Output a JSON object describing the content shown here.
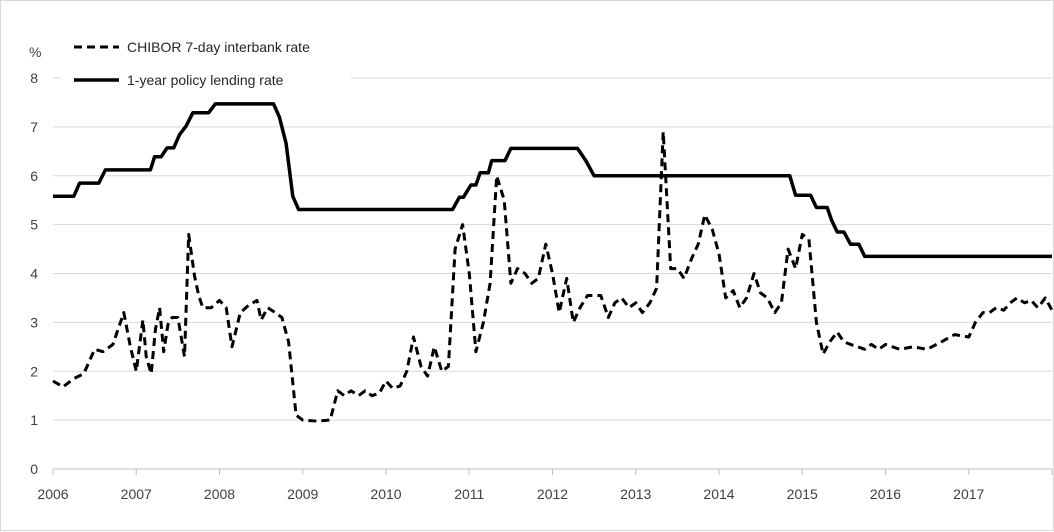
{
  "chart_data": {
    "type": "line",
    "title": "",
    "xlabel": "",
    "ylabel": "%",
    "ylim": [
      0,
      8
    ],
    "xlim": [
      2006,
      2018
    ],
    "grid": "horizontal",
    "legend": "top-left",
    "y_ticks": [
      "0",
      "1",
      "2",
      "3",
      "4",
      "5",
      "6",
      "7",
      "8"
    ],
    "x_ticks": [
      "2006",
      "2007",
      "2008",
      "2009",
      "2010",
      "2011",
      "2012",
      "2013",
      "2014",
      "2015",
      "2016",
      "2017"
    ],
    "series": [
      {
        "name": "CHIBOR 7-day interbank rate",
        "style": "dashed",
        "color": "#000000",
        "x": [
          2006.0,
          2006.12,
          2006.25,
          2006.37,
          2006.5,
          2006.6,
          2006.72,
          2006.85,
          2006.93,
          2007.0,
          2007.08,
          2007.12,
          2007.18,
          2007.23,
          2007.28,
          2007.33,
          2007.38,
          2007.43,
          2007.5,
          2007.58,
          2007.63,
          2007.7,
          2007.75,
          2007.8,
          2007.9,
          2008.0,
          2008.08,
          2008.15,
          2008.25,
          2008.35,
          2008.45,
          2008.5,
          2008.58,
          2008.67,
          2008.75,
          2008.83,
          2008.92,
          2009.0,
          2009.17,
          2009.33,
          2009.42,
          2009.5,
          2009.58,
          2009.67,
          2009.75,
          2009.83,
          2009.92,
          2010.0,
          2010.08,
          2010.17,
          2010.25,
          2010.33,
          2010.42,
          2010.5,
          2010.58,
          2010.67,
          2010.75,
          2010.83,
          2010.92,
          2011.0,
          2011.08,
          2011.17,
          2011.25,
          2011.33,
          2011.42,
          2011.5,
          2011.58,
          2011.67,
          2011.75,
          2011.83,
          2011.92,
          2012.0,
          2012.08,
          2012.17,
          2012.25,
          2012.33,
          2012.42,
          2012.5,
          2012.58,
          2012.67,
          2012.75,
          2012.83,
          2012.92,
          2013.0,
          2013.08,
          2013.17,
          2013.25,
          2013.33,
          2013.42,
          2013.46,
          2013.5,
          2013.58,
          2013.67,
          2013.75,
          2013.83,
          2013.92,
          2014.0,
          2014.08,
          2014.17,
          2014.25,
          2014.33,
          2014.42,
          2014.5,
          2014.58,
          2014.67,
          2014.75,
          2014.83,
          2014.92,
          2015.0,
          2015.08,
          2015.17,
          2015.25,
          2015.33,
          2015.42,
          2015.5,
          2015.58,
          2015.67,
          2015.75,
          2015.83,
          2015.92,
          2016.0,
          2016.17,
          2016.33,
          2016.5,
          2016.67,
          2016.83,
          2017.0,
          2017.08,
          2017.17,
          2017.25,
          2017.33,
          2017.42,
          2017.5,
          2017.58,
          2017.67,
          2017.75,
          2017.83,
          2017.92,
          2018.0
        ],
        "values": [
          1.8,
          1.68,
          1.85,
          1.95,
          2.45,
          2.4,
          2.55,
          3.2,
          2.5,
          2.0,
          3.05,
          2.3,
          1.95,
          2.85,
          3.3,
          2.4,
          2.95,
          3.1,
          3.1,
          2.3,
          4.8,
          3.95,
          3.55,
          3.3,
          3.3,
          3.45,
          3.3,
          2.5,
          3.2,
          3.35,
          3.45,
          3.05,
          3.3,
          3.2,
          3.1,
          2.6,
          1.1,
          1.0,
          0.98,
          1.0,
          1.6,
          1.5,
          1.6,
          1.5,
          1.6,
          1.5,
          1.55,
          1.8,
          1.65,
          1.7,
          2.0,
          2.7,
          2.1,
          1.9,
          2.5,
          2.0,
          2.1,
          4.5,
          5.0,
          4.0,
          2.4,
          3.0,
          3.8,
          6.0,
          5.5,
          3.8,
          4.1,
          4.0,
          3.8,
          3.9,
          4.6,
          4.0,
          3.2,
          3.9,
          3.0,
          3.3,
          3.55,
          3.55,
          3.55,
          3.1,
          3.4,
          3.5,
          3.3,
          3.4,
          3.2,
          3.4,
          3.7,
          6.9,
          4.1,
          4.1,
          4.1,
          3.9,
          4.3,
          4.6,
          5.2,
          4.9,
          4.4,
          3.5,
          3.65,
          3.3,
          3.5,
          4.0,
          3.6,
          3.5,
          3.2,
          3.4,
          4.5,
          4.1,
          4.8,
          4.7,
          3.0,
          2.35,
          2.6,
          2.8,
          2.6,
          2.55,
          2.5,
          2.45,
          2.55,
          2.45,
          2.55,
          2.45,
          2.5,
          2.45,
          2.6,
          2.75,
          2.7,
          3.0,
          3.2,
          3.2,
          3.3,
          3.25,
          3.4,
          3.5,
          3.4,
          3.45,
          3.3,
          3.5,
          3.25
        ]
      },
      {
        "name": "1-year policy lending rate",
        "style": "solid",
        "color": "#000000",
        "x": [
          2006.0,
          2006.25,
          2006.32,
          2006.55,
          2006.63,
          2007.17,
          2007.22,
          2007.3,
          2007.37,
          2007.45,
          2007.52,
          2007.6,
          2007.68,
          2007.72,
          2007.87,
          2007.95,
          2008.65,
          2008.72,
          2008.8,
          2008.88,
          2008.95,
          2010.8,
          2010.88,
          2010.93,
          2011.02,
          2011.08,
          2011.13,
          2011.23,
          2011.27,
          2011.43,
          2011.5,
          2012.3,
          2012.4,
          2012.5,
          2012.55,
          2014.85,
          2014.92,
          2015.1,
          2015.17,
          2015.3,
          2015.35,
          2015.42,
          2015.5,
          2015.58,
          2015.68,
          2015.75,
          2015.82,
          2015.9,
          2018.0
        ],
        "values": [
          5.58,
          5.58,
          5.85,
          5.85,
          6.12,
          6.12,
          6.39,
          6.39,
          6.57,
          6.57,
          6.84,
          7.02,
          7.29,
          7.29,
          7.29,
          7.47,
          7.47,
          7.2,
          6.66,
          5.58,
          5.31,
          5.31,
          5.56,
          5.56,
          5.81,
          5.81,
          6.06,
          6.06,
          6.31,
          6.31,
          6.56,
          6.56,
          6.31,
          6.0,
          6.0,
          6.0,
          5.6,
          5.6,
          5.35,
          5.35,
          5.1,
          4.85,
          4.85,
          4.6,
          4.6,
          4.35,
          4.35,
          4.35,
          4.35
        ]
      }
    ]
  }
}
